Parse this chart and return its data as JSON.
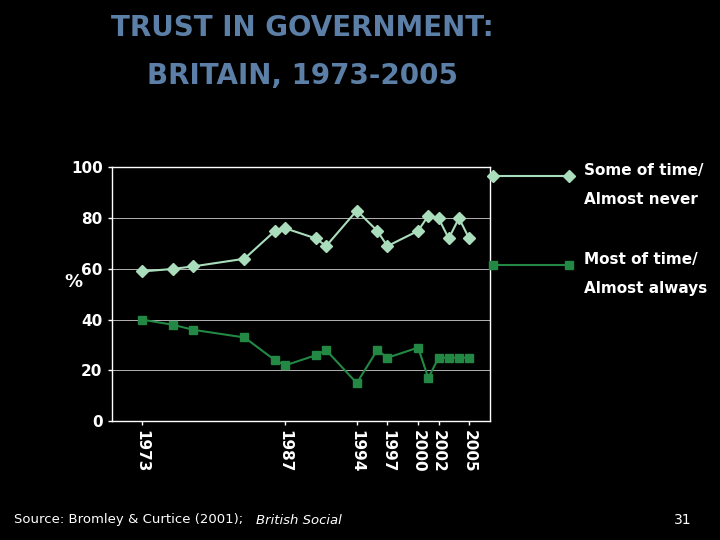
{
  "title_line1": "TRUST IN GOVERNMENT:",
  "title_line2": "BRITAIN, 1973-2005",
  "title_color": "#5b7fa6",
  "background_color": "#000000",
  "plot_bg_color": "#000000",
  "grid_color": "#ffffff",
  "axis_color": "#ffffff",
  "tick_label_color": "#ffffff",
  "ylabel": "%",
  "ylabel_color": "#ffffff",
  "source_text": "Source: Bromley & Curtice (2001); ",
  "source_text_italic": "British Social",
  "page_number": "31",
  "series1_label_line1": "Some of time/",
  "series1_label_line2": "Almost never",
  "series1_color": "#aaddbb",
  "series1_marker": "D",
  "series1_markersize": 6,
  "series1_x": [
    1973,
    1976,
    1978,
    1983,
    1986,
    1987,
    1990,
    1991,
    1994,
    1996,
    1997,
    2000,
    2001,
    2002,
    2003,
    2004,
    2005
  ],
  "series1_y": [
    59,
    60,
    61,
    64,
    75,
    76,
    72,
    69,
    83,
    75,
    69,
    75,
    81,
    80,
    72,
    80,
    72
  ],
  "series2_label_line1": "Most of time/",
  "series2_label_line2": "Almost always",
  "series2_color": "#228844",
  "series2_marker": "s",
  "series2_markersize": 6,
  "series2_x": [
    1973,
    1976,
    1978,
    1983,
    1986,
    1987,
    1990,
    1991,
    1994,
    1996,
    1997,
    2000,
    2001,
    2002,
    2003,
    2004,
    2005
  ],
  "series2_y": [
    40,
    38,
    36,
    33,
    24,
    22,
    26,
    28,
    15,
    28,
    25,
    29,
    17,
    25,
    25,
    25,
    25
  ],
  "xtick_positions": [
    1973,
    1987,
    1994,
    1997,
    2000,
    2002,
    2005
  ],
  "xtick_labels": [
    "1973",
    "1987",
    "1994",
    "1997",
    "2000",
    "2002",
    "2005"
  ],
  "ylim": [
    0,
    100
  ],
  "ytick_positions": [
    0,
    20,
    40,
    60,
    80,
    100
  ],
  "xlim": [
    1970,
    2007
  ],
  "legend_fontsize": 11,
  "title_fontsize1": 20,
  "title_fontsize2": 20,
  "tick_fontsize": 11
}
